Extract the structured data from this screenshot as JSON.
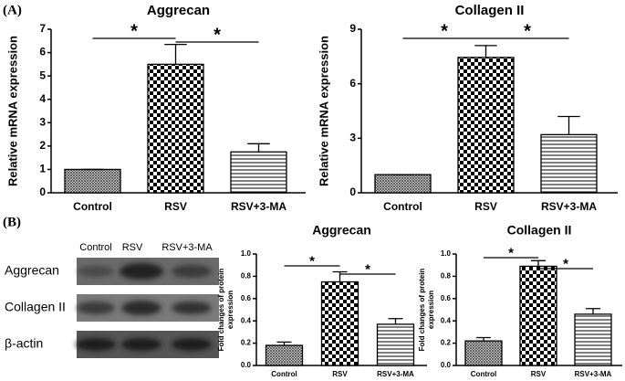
{
  "panel_labels": [
    "(A)",
    "(B)"
  ],
  "blot": {
    "columns": [
      "Control",
      "RSV",
      "RSV+3-MA"
    ],
    "rows": [
      "Aggrecan",
      "Collagen II",
      "β-actin"
    ]
  },
  "chart_data": [
    {
      "type": "bar",
      "title": "Aggrecan",
      "ylabel": "Relative mRNA expression",
      "categories": [
        "Control",
        "RSV",
        "RSV+3-MA"
      ],
      "values": [
        1,
        5.5,
        1.75
      ],
      "errors": [
        0,
        0.85,
        0.35
      ],
      "ylim": [
        0,
        7
      ],
      "yticks": [
        0,
        1,
        2,
        3,
        4,
        5,
        6,
        7
      ],
      "annotations": [
        "*",
        "*"
      ]
    },
    {
      "type": "bar",
      "title": "Collagen II",
      "ylabel": "Relative mRNA expression",
      "categories": [
        "Control",
        "RSV",
        "RSV+3-MA"
      ],
      "values": [
        1,
        7.45,
        3.2
      ],
      "errors": [
        0,
        0.65,
        1.0
      ],
      "ylim": [
        0,
        9
      ],
      "yticks": [
        0,
        3,
        6,
        9
      ],
      "annotations": [
        "*",
        "*"
      ]
    },
    {
      "type": "bar",
      "title": "Aggrecan",
      "ylabel": [
        "Fold changes of protein",
        "expression"
      ],
      "categories": [
        "Control",
        "RSV",
        "RSV+3-MA"
      ],
      "values": [
        0.18,
        0.75,
        0.37
      ],
      "errors": [
        0.03,
        0.09,
        0.05
      ],
      "ylim": [
        0,
        1
      ],
      "yticks": [
        {
          "value": 0,
          "label": "0.0"
        },
        0.2,
        0.4,
        0.6,
        0.8,
        {
          "value": 1,
          "label": "1.0"
        }
      ],
      "annotations": [
        "*",
        "*"
      ]
    },
    {
      "type": "bar",
      "title": "Collagen II",
      "ylabel": [
        "Fold changes of protein",
        "expression"
      ],
      "categories": [
        "Control",
        "RSV",
        "RSV+3-MA"
      ],
      "values": [
        0.22,
        0.89,
        0.46
      ],
      "errors": [
        0.03,
        0.05,
        0.05
      ],
      "ylim": [
        0,
        1
      ],
      "yticks": [
        {
          "value": 0,
          "label": "0.0"
        },
        0.2,
        0.4,
        0.6,
        0.8,
        {
          "value": 1,
          "label": "1.0"
        }
      ],
      "annotations": [
        "*",
        "*"
      ]
    }
  ]
}
